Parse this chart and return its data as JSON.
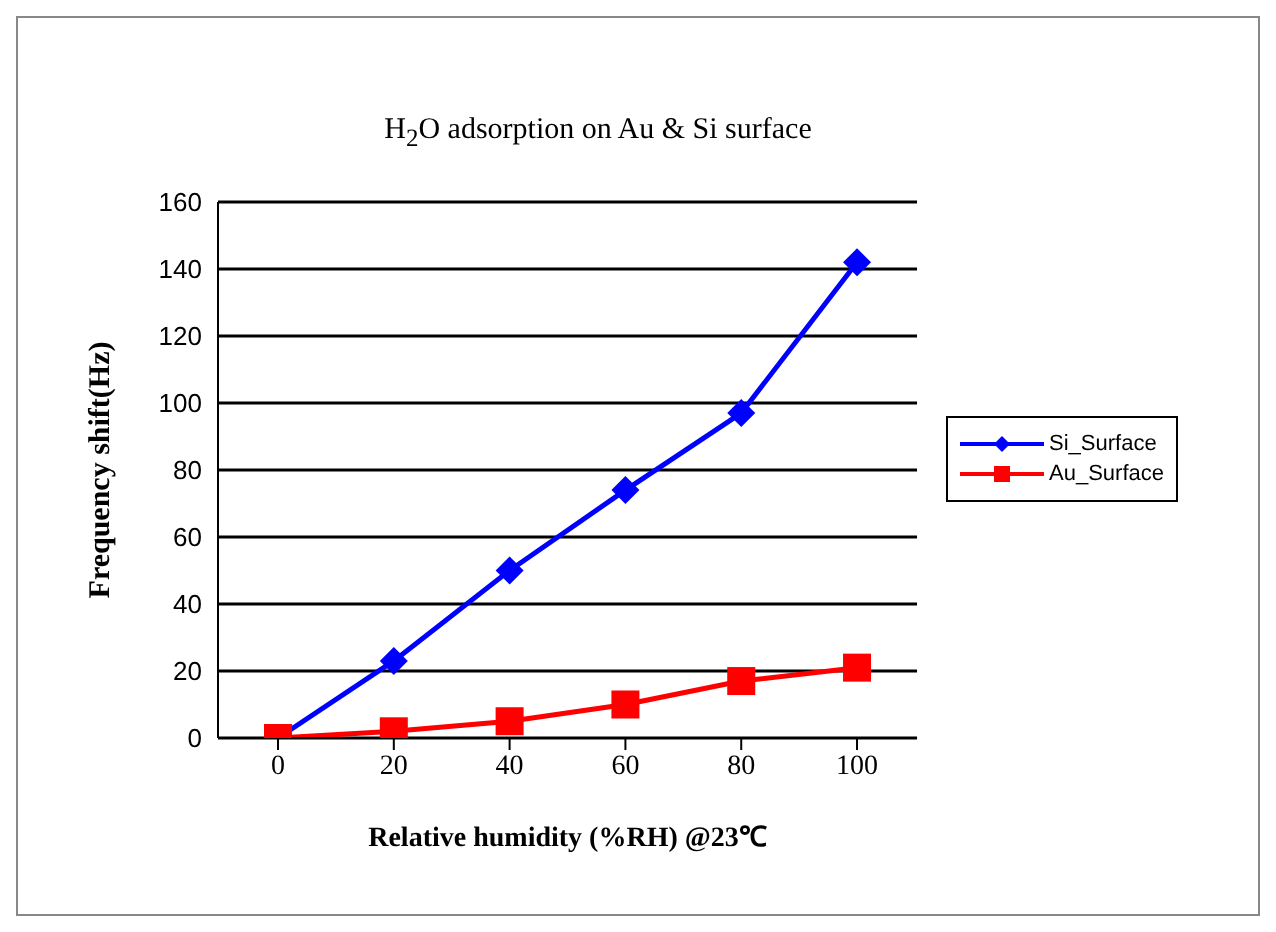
{
  "chart_data": {
    "type": "line",
    "title": "H$_{2}$O adsorption on Au & Si surface",
    "xlabel": "Relative humidity (%RH) @23℃",
    "ylabel": "Frequency shift(Hz)",
    "categories": [
      "0",
      "20",
      "40",
      "60",
      "80",
      "100"
    ],
    "series": [
      {
        "name": "Si_Surface",
        "color": "#0000ff",
        "marker": "diamond",
        "values": [
          0,
          23,
          50,
          74,
          97,
          142
        ]
      },
      {
        "name": "Au_Surface",
        "color": "#ff0000",
        "marker": "square",
        "values": [
          0,
          2,
          5,
          10,
          17,
          21
        ]
      }
    ],
    "ylim": [
      0,
      160
    ],
    "yticks": [
      0,
      20,
      40,
      60,
      80,
      100,
      120,
      140,
      160
    ],
    "grid": "y",
    "legend": "right"
  }
}
